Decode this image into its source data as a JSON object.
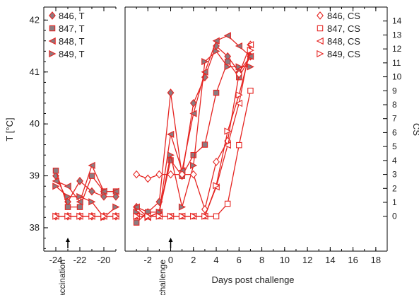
{
  "chart_data": {
    "type": "line",
    "xlabel": "Days post challenge",
    "ylabel_left": "T [°C]",
    "ylabel_right": "CS",
    "ylim_left": [
      37.55,
      42.25
    ],
    "ylim_right": [
      -2.5,
      15.0
    ],
    "broken_x_axis": true,
    "x_segments": [
      {
        "xlim": [
          -25,
          -19
        ],
        "ticks": [
          -24,
          -22,
          -20
        ]
      },
      {
        "xlim": [
          -4,
          19
        ],
        "ticks": [
          -2,
          0,
          2,
          4,
          6,
          8,
          10,
          12,
          14,
          16,
          18
        ]
      }
    ],
    "yticks_left": [
      38,
      39,
      40,
      41,
      42
    ],
    "yticks_right": [
      0,
      1,
      2,
      3,
      4,
      5,
      6,
      7,
      8,
      9,
      10,
      11,
      12,
      13,
      14
    ],
    "annotations": [
      {
        "text": "vaccination",
        "x": -23
      },
      {
        "text": "challenge",
        "x": 0
      }
    ],
    "legend_left": {
      "placement": "top-left",
      "entries": [
        "846, T",
        "847, T",
        "848, T",
        "849, T"
      ]
    },
    "legend_right": {
      "placement": "top-right",
      "entries": [
        "846, CS",
        "847, CS",
        "848, CS",
        "849, CS"
      ]
    },
    "series": [
      {
        "name": "846, T",
        "axis": "left",
        "marker": "diamond",
        "filled": true,
        "points": [
          [
            -24,
            39.0
          ],
          [
            -23,
            38.5
          ],
          [
            -22,
            38.9
          ],
          [
            -21,
            38.7
          ],
          [
            -20,
            38.6
          ],
          [
            -19,
            38.6
          ],
          [
            -3,
            38.4
          ],
          [
            -2,
            38.3
          ],
          [
            -1,
            38.5
          ],
          [
            0,
            40.6
          ],
          [
            1,
            39.0
          ],
          [
            2,
            40.4
          ],
          [
            3,
            40.9
          ],
          [
            4,
            41.5
          ],
          [
            5,
            41.3
          ],
          [
            6,
            41.0
          ],
          [
            7,
            41.3
          ]
        ]
      },
      {
        "name": "847, T",
        "axis": "left",
        "marker": "square",
        "filled": true,
        "points": [
          [
            -24,
            39.1
          ],
          [
            -23,
            38.4
          ],
          [
            -22,
            38.4
          ],
          [
            -21,
            39.0
          ],
          [
            -20,
            38.7
          ],
          [
            -19,
            38.7
          ],
          [
            -3,
            38.1
          ],
          [
            -2,
            38.3
          ],
          [
            -1,
            38.3
          ],
          [
            0,
            39.3
          ],
          [
            1,
            39.0
          ],
          [
            2,
            39.4
          ],
          [
            3,
            39.6
          ],
          [
            4,
            40.6
          ],
          [
            5,
            41.2
          ],
          [
            6,
            40.9
          ],
          [
            7,
            41.3
          ]
        ]
      },
      {
        "name": "848, T",
        "axis": "left",
        "marker": "triangle-left",
        "filled": true,
        "points": [
          [
            -24,
            38.9
          ],
          [
            -23,
            38.8
          ],
          [
            -22,
            38.5
          ],
          [
            -21,
            39.2
          ],
          [
            -20,
            38.7
          ],
          [
            -19,
            38.7
          ],
          [
            -3,
            38.4
          ],
          [
            -2,
            38.2
          ],
          [
            -1,
            38.3
          ],
          [
            0,
            39.8
          ],
          [
            1,
            39.1
          ],
          [
            2,
            40.2
          ],
          [
            3,
            41.0
          ],
          [
            4,
            41.6
          ],
          [
            5,
            41.7
          ],
          [
            6,
            41.5
          ],
          [
            7,
            41.3
          ]
        ]
      },
      {
        "name": "849, T",
        "axis": "left",
        "marker": "triangle-right",
        "filled": true,
        "points": [
          [
            -24,
            38.8
          ],
          [
            -23,
            38.6
          ],
          [
            -22,
            38.6
          ],
          [
            -21,
            38.5
          ],
          [
            -20,
            38.2
          ],
          [
            -19,
            38.4
          ],
          [
            -3,
            38.3
          ],
          [
            -2,
            38.2
          ],
          [
            -1,
            38.3
          ],
          [
            0,
            39.4
          ],
          [
            1,
            38.4
          ],
          [
            2,
            39.2
          ],
          [
            3,
            41.2
          ],
          [
            4,
            41.4
          ],
          [
            5,
            41.1
          ],
          [
            6,
            41.1
          ],
          [
            7,
            41.1
          ]
        ]
      },
      {
        "name": "846, CS",
        "axis": "right",
        "marker": "diamond",
        "filled": false,
        "points": [
          [
            -24,
            0
          ],
          [
            -23,
            0
          ],
          [
            -22,
            0
          ],
          [
            -21,
            0
          ],
          [
            -20,
            0
          ],
          [
            -19,
            0
          ],
          [
            -3,
            3
          ],
          [
            -2,
            2.7
          ],
          [
            -1,
            3
          ],
          [
            0,
            3
          ],
          [
            1,
            3
          ],
          [
            2,
            3
          ],
          [
            3,
            0.5
          ],
          [
            4,
            3.9
          ],
          [
            5,
            5.4
          ],
          [
            6,
            10.2
          ],
          [
            7,
            12.3
          ]
        ]
      },
      {
        "name": "847, CS",
        "axis": "right",
        "marker": "square",
        "filled": false,
        "points": [
          [
            -24,
            0
          ],
          [
            -23,
            0
          ],
          [
            -22,
            0
          ],
          [
            -21,
            0
          ],
          [
            -20,
            0
          ],
          [
            -19,
            0
          ],
          [
            -3,
            0
          ],
          [
            -2,
            0
          ],
          [
            -1,
            0
          ],
          [
            0,
            0
          ],
          [
            1,
            0
          ],
          [
            2,
            0
          ],
          [
            3,
            0
          ],
          [
            4,
            0
          ],
          [
            5,
            0.9
          ],
          [
            6,
            5.1
          ],
          [
            7,
            9.0
          ]
        ]
      },
      {
        "name": "848, CS",
        "axis": "right",
        "marker": "triangle-left",
        "filled": false,
        "points": [
          [
            -24,
            0
          ],
          [
            -23,
            0
          ],
          [
            -22,
            0
          ],
          [
            -21,
            0
          ],
          [
            -20,
            0
          ],
          [
            -19,
            0
          ],
          [
            -3,
            0
          ],
          [
            -2,
            0
          ],
          [
            -1,
            0
          ],
          [
            0,
            0
          ],
          [
            1,
            0
          ],
          [
            2,
            0
          ],
          [
            3,
            0
          ],
          [
            4,
            2.1
          ],
          [
            5,
            5.1
          ],
          [
            6,
            8.1
          ],
          [
            7,
            12.3
          ]
        ]
      },
      {
        "name": "849, CS",
        "axis": "right",
        "marker": "triangle-right",
        "filled": false,
        "points": [
          [
            -24,
            0
          ],
          [
            -23,
            0
          ],
          [
            -22,
            0
          ],
          [
            -21,
            0
          ],
          [
            -20,
            0
          ],
          [
            -19,
            0
          ],
          [
            -3,
            0
          ],
          [
            -2,
            0
          ],
          [
            -1,
            0
          ],
          [
            0,
            0
          ],
          [
            1,
            0
          ],
          [
            2,
            0
          ],
          [
            3,
            0
          ],
          [
            4,
            2.2
          ],
          [
            5,
            6.1
          ],
          [
            6,
            8.7
          ],
          [
            7,
            11.9
          ]
        ]
      }
    ],
    "colors": {
      "line": "#e52421",
      "marker_fill": "#8c7b80",
      "marker_stroke": "#e52421",
      "axis": "#000000"
    }
  }
}
